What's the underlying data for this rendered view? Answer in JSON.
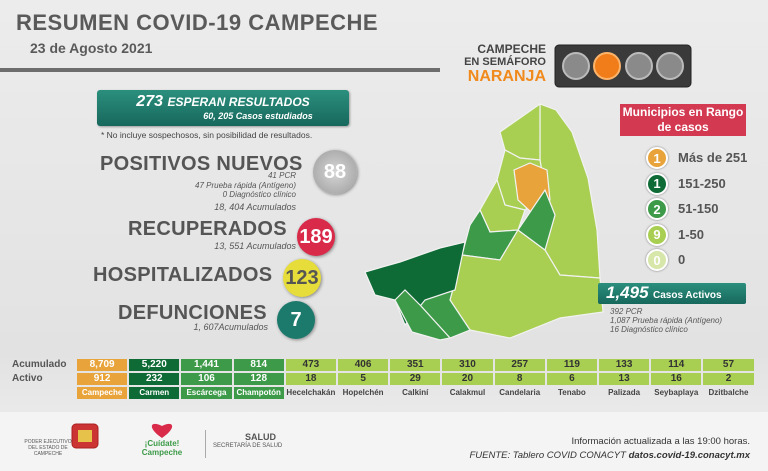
{
  "header": {
    "title": "RESUMEN COVID-19 CAMPECHE",
    "date": "23 de Agosto 2021"
  },
  "semaforo": {
    "line1": "CAMPECHE",
    "line2": "EN SEMÁFORO",
    "color": "NARANJA"
  },
  "pendientes": {
    "number": "273",
    "label": "ESPERAN RESULTADOS",
    "studied": "60, 205 Casos estudiados",
    "note": "* No incluye sospechosos, sin posibilidad de resultados."
  },
  "positivos": {
    "label": "POSITIVOS NUEVOS",
    "number": "88",
    "lines": [
      "41 PCR",
      "47 Prueba rápida (Antígeno)",
      "0 Diagnóstico clínico"
    ],
    "acumulados": "18, 404 Acumulados"
  },
  "recuperados": {
    "label": "RECUPERADOS",
    "number": "189",
    "acumulados": "13, 551 Acumulados"
  },
  "hospitalizados": {
    "label": "HOSPITALIZADOS",
    "number": "123"
  },
  "defunciones": {
    "label": "DEFUNCIONES",
    "number": "7",
    "acumulados": "1, 607Acumulados"
  },
  "legend": {
    "title": "Municipios en Rango de casos",
    "items": [
      {
        "count": "1",
        "range": "Más de 251",
        "color": "#e8a33a"
      },
      {
        "count": "1",
        "range": "151-250",
        "color": "#0e6b35"
      },
      {
        "count": "2",
        "range": "51-150",
        "color": "#3c9a48"
      },
      {
        "count": "9",
        "range": "1-50",
        "color": "#a8cf52"
      },
      {
        "count": "0",
        "range": "0",
        "color": "#d7e6a9"
      }
    ]
  },
  "activos": {
    "number": "1,495",
    "label": "Casos Activos",
    "lines": [
      "392 PCR",
      "1,087 Prueba rápida (Antígeno)",
      "16 Diagnóstico clínico"
    ]
  },
  "table": {
    "row_labels": [
      "Acumulado",
      "Activo"
    ],
    "columns": [
      {
        "name": "Campeche",
        "acumulado": "8,709",
        "activo": "912",
        "color": "#e8a33a"
      },
      {
        "name": "Carmen",
        "acumulado": "5,220",
        "activo": "232",
        "color": "#0e6b35"
      },
      {
        "name": "Escárcega",
        "acumulado": "1,441",
        "activo": "106",
        "color": "#3c9a48"
      },
      {
        "name": "Champotón",
        "acumulado": "814",
        "activo": "128",
        "color": "#3c9a48"
      },
      {
        "name": "Hecelchakán",
        "acumulado": "473",
        "activo": "18",
        "color": "#a8cf52"
      },
      {
        "name": "Hopelchén",
        "acumulado": "406",
        "activo": "5",
        "color": "#a8cf52"
      },
      {
        "name": "Calkiní",
        "acumulado": "351",
        "activo": "29",
        "color": "#a8cf52"
      },
      {
        "name": "Calakmul",
        "acumulado": "310",
        "activo": "20",
        "color": "#a8cf52"
      },
      {
        "name": "Candelaria",
        "acumulado": "257",
        "activo": "8",
        "color": "#a8cf52"
      },
      {
        "name": "Tenabo",
        "acumulado": "119",
        "activo": "6",
        "color": "#a8cf52"
      },
      {
        "name": "Palizada",
        "acumulado": "133",
        "activo": "13",
        "color": "#a8cf52"
      },
      {
        "name": "Seybaplaya",
        "acumulado": "114",
        "activo": "16",
        "color": "#a8cf52"
      },
      {
        "name": "Dzitbalche",
        "acumulado": "57",
        "activo": "2",
        "color": "#a8cf52"
      }
    ]
  },
  "footer": {
    "gov": "PODER EJECUTIVO DEL ESTADO DE CAMPECHE",
    "campaign": "¡Cuídate! Campeche",
    "salud": "SALUD",
    "secretaria": "SECRETARÍA DE SALUD",
    "update": "Información actualizada a las 19:00 horas.",
    "source": "FUENTE: Tablero COVID CONACYT",
    "url": "datos.covid-19.conacyt.mx"
  }
}
